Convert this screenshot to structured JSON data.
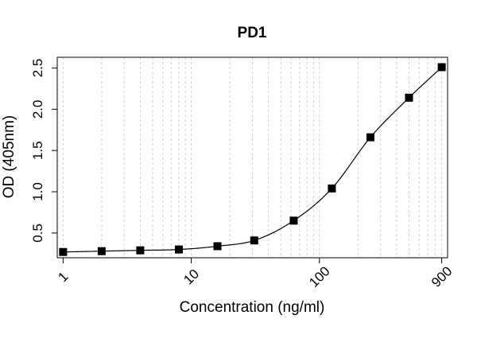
{
  "chart_data": {
    "type": "scatter",
    "title": "PD1",
    "xlabel": "Concentration (ng/ml)",
    "ylabel": "OD (405nm)",
    "x_scale": "log",
    "xlim": [
      0.9,
      1000
    ],
    "ylim": [
      0.2,
      2.63
    ],
    "x_ticks": [
      1,
      10,
      100,
      900
    ],
    "x_tick_labels": [
      "1",
      "10",
      "100",
      "900"
    ],
    "y_ticks": [
      0.5,
      1.0,
      1.5,
      2.0,
      2.5
    ],
    "y_tick_labels": [
      "0.5",
      "1.0",
      "1.5",
      "2.0",
      "2.5"
    ],
    "grid": "vertical dotted at log minor ticks",
    "x": [
      1,
      2,
      4,
      8,
      16,
      31,
      63,
      125,
      250,
      500,
      900
    ],
    "y": [
      0.27,
      0.28,
      0.29,
      0.3,
      0.34,
      0.41,
      0.65,
      1.04,
      1.66,
      2.14,
      2.51
    ],
    "fit_line": "four-parameter logistic curve through points"
  }
}
